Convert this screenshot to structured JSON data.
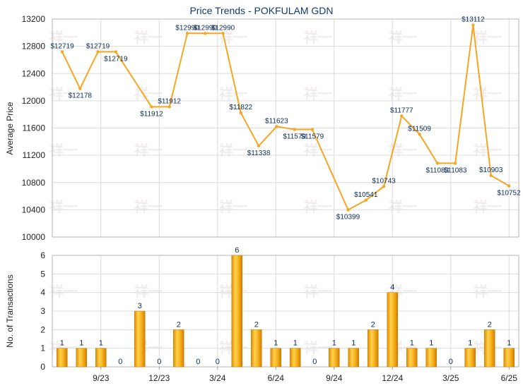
{
  "chart_data": [
    {
      "type": "line",
      "title": "Price Trends - POKFULAM GDN",
      "ylabel": "Average Price",
      "ylim": [
        10000,
        13200
      ],
      "yticks": [
        10000,
        10400,
        10800,
        11200,
        11600,
        12000,
        12400,
        12800,
        13200
      ],
      "grid": true,
      "color": "#f5a623",
      "series": [
        {
          "values": [
            12719,
            12178,
            12719,
            12719,
            null,
            11912,
            11912,
            12990,
            12990,
            12990,
            11822,
            11338,
            11623,
            11579,
            11579,
            null,
            10399,
            10541,
            10743,
            11777,
            11509,
            11083,
            11083,
            13112,
            10903,
            10752
          ],
          "labels": [
            "$12719",
            "$12178",
            "$12719",
            "$12719",
            "",
            "$11912",
            "$11912",
            "$12990",
            "$12990",
            "$12990",
            "$11822",
            "$11338",
            "$11623",
            "$11579",
            "$11579",
            "",
            "$10399",
            "$10541",
            "$10743",
            "$11777",
            "$11509",
            "$11083",
            "$11083",
            "$13112",
            "$10903",
            "$10752"
          ]
        }
      ]
    },
    {
      "type": "bar",
      "ylabel": "No. of Transactions",
      "ylim": [
        0,
        6
      ],
      "yticks": [
        0,
        1,
        2,
        3,
        4,
        5,
        6
      ],
      "grid": true,
      "values": [
        1,
        1,
        1,
        0,
        3,
        0,
        2,
        0,
        0,
        6,
        2,
        1,
        1,
        0,
        1,
        1,
        2,
        4,
        1,
        1,
        0,
        1,
        2,
        1
      ],
      "x_tick_labels": [
        "9/23",
        "12/23",
        "3/24",
        "6/24",
        "9/24",
        "12/24",
        "3/25",
        "6/25"
      ],
      "x_tick_positions": [
        2,
        5,
        8,
        11,
        14,
        17,
        20,
        23
      ]
    }
  ],
  "watermark_text": "祥一"
}
